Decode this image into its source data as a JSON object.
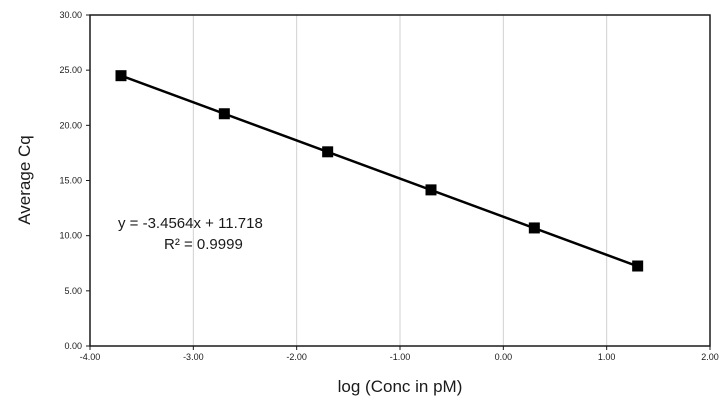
{
  "chart_data": {
    "type": "scatter",
    "title": "",
    "xlabel": "log (Conc in pM)",
    "ylabel": "Average Cq",
    "xlim": [
      -4,
      2
    ],
    "ylim": [
      0,
      30
    ],
    "x_ticks": [
      "-4.00",
      "-3.00",
      "-2.00",
      "-1.00",
      "0.00",
      "1.00",
      "2.00"
    ],
    "y_ticks": [
      "0.00",
      "5.00",
      "10.00",
      "15.00",
      "20.00",
      "25.00",
      "30.00"
    ],
    "grid": {
      "vertical": true,
      "horizontal": false
    },
    "series": [
      {
        "x": [
          -3.7,
          -2.7,
          -1.7,
          -0.7,
          0.3,
          1.3
        ],
        "y": [
          24.5,
          21.05,
          17.6,
          14.15,
          10.7,
          7.25
        ],
        "marker": "square",
        "color": "#000000"
      }
    ],
    "trendline": {
      "slope": -3.4564,
      "intercept": 11.718,
      "x_range": [
        -3.7,
        1.3
      ],
      "color": "#000000"
    },
    "annotations": {
      "equation": "y = -3.4564x + 11.718",
      "r_squared": "R² = 0.9999"
    }
  }
}
